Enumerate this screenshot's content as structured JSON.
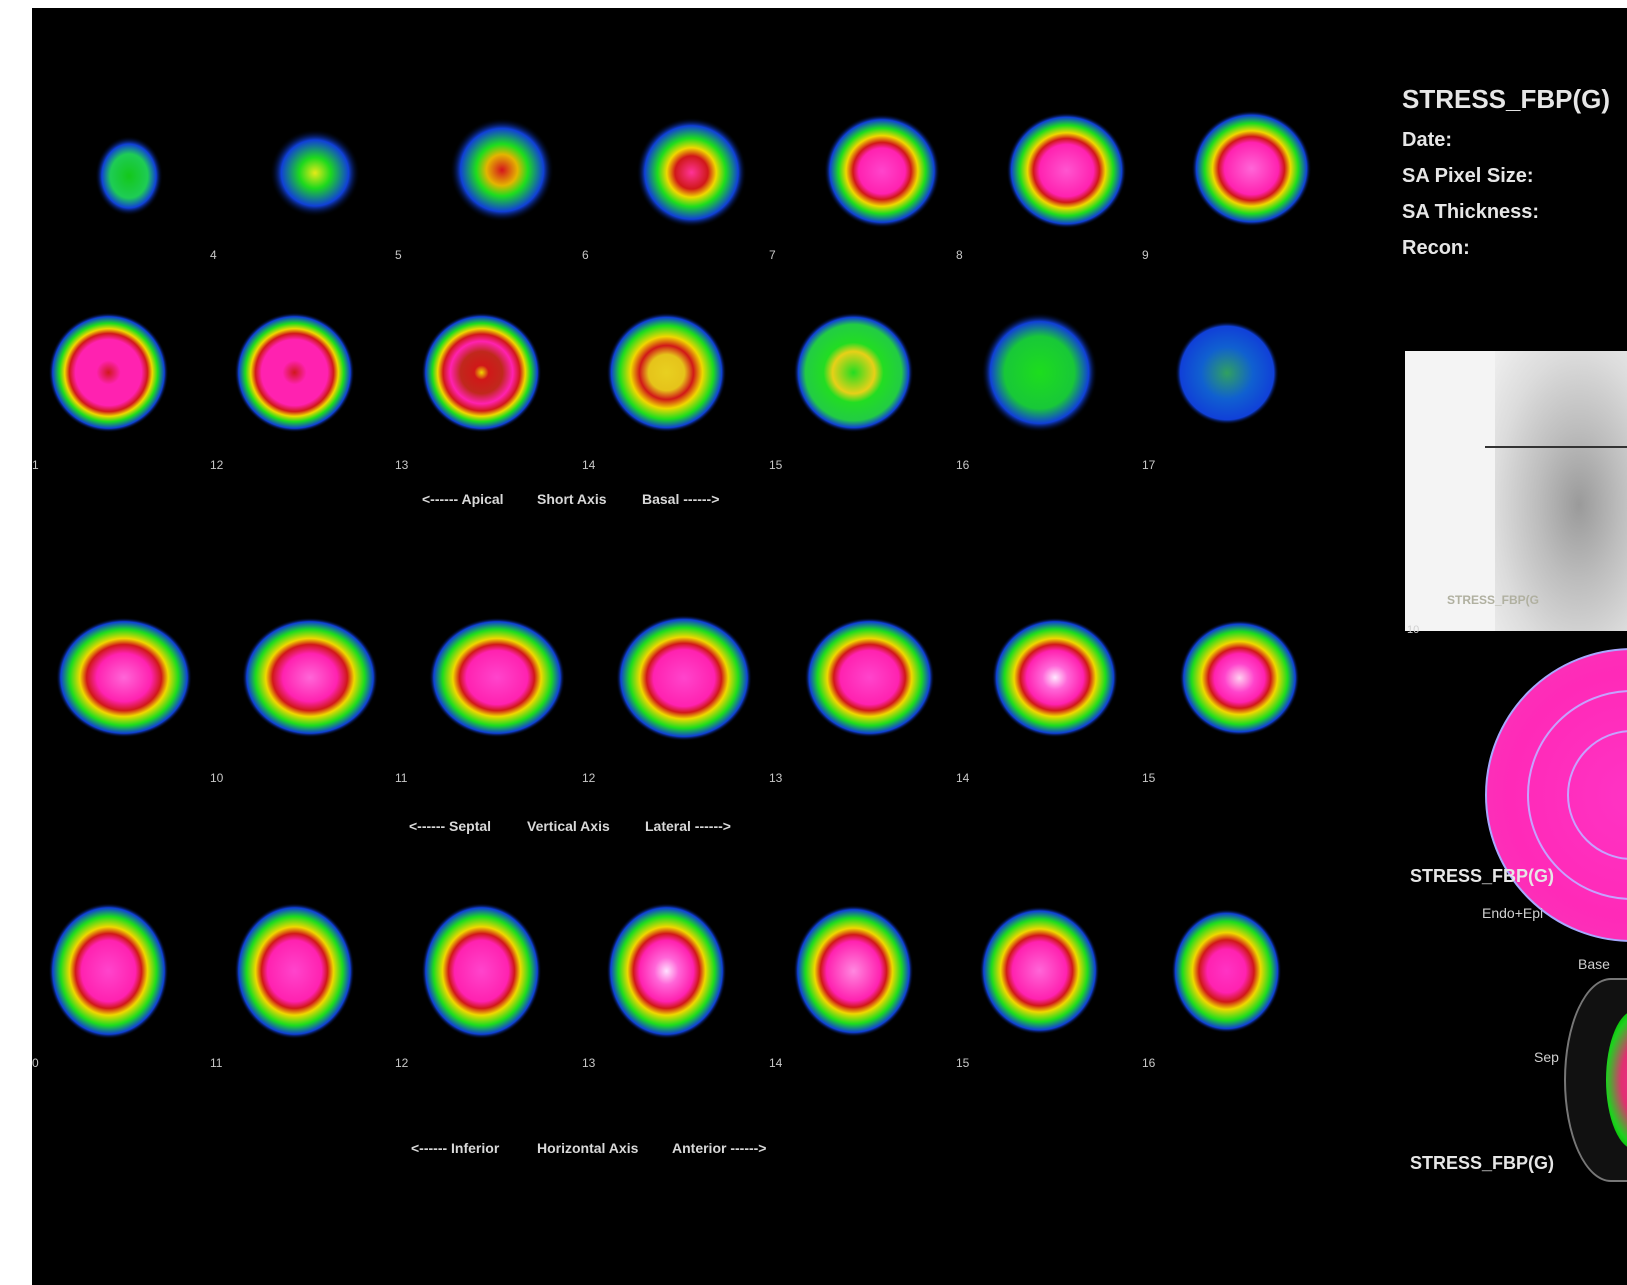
{
  "title": "STRESS_FBP(G)",
  "info": {
    "date_label": "Date:",
    "pixel_label": "SA Pixel Size:",
    "thickness_label": "SA Thickness:",
    "recon_label": "Recon:"
  },
  "short_axis": {
    "row1_numbers": [
      "4",
      "5",
      "6",
      "7",
      "8",
      "9"
    ],
    "row2_numbers": [
      "1",
      "12",
      "13",
      "14",
      "15",
      "16",
      "17"
    ],
    "labels": [
      "<------ Apical",
      "Short Axis",
      "Basal ------>"
    ]
  },
  "vertical_axis": {
    "numbers": [
      "10",
      "11",
      "12",
      "13",
      "14",
      "15"
    ],
    "labels": [
      "<------ Septal",
      "Vertical Axis",
      "Lateral ------>"
    ]
  },
  "horizontal_axis": {
    "numbers": [
      "0",
      "11",
      "12",
      "13",
      "14",
      "15",
      "16"
    ],
    "labels": [
      "<------ Inferior",
      "Horizontal Axis",
      "Anterior ------>"
    ]
  },
  "planar": {
    "overlay": "STRESS_FBP(G",
    "number": "10"
  },
  "polar": {
    "title": "STRESS_FBP(G)",
    "caption": "Endo+Epi"
  },
  "mesh": {
    "base": "Base",
    "sep": "Sep"
  },
  "bottom_title": "STRESS_FBP(G)"
}
